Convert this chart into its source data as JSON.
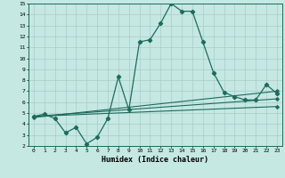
{
  "title": "",
  "xlabel": "Humidex (Indice chaleur)",
  "xlim": [
    -0.5,
    23.5
  ],
  "ylim": [
    2,
    15
  ],
  "xticks": [
    0,
    1,
    2,
    3,
    4,
    5,
    6,
    7,
    8,
    9,
    10,
    11,
    12,
    13,
    14,
    15,
    16,
    17,
    18,
    19,
    20,
    21,
    22,
    23
  ],
  "yticks": [
    2,
    3,
    4,
    5,
    6,
    7,
    8,
    9,
    10,
    11,
    12,
    13,
    14,
    15
  ],
  "bg_color": "#c5e8e3",
  "line_color": "#1e6b5a",
  "grid_color": "#a8ccc8",
  "line1_x": [
    0,
    1,
    2,
    3,
    4,
    5,
    6,
    7,
    8,
    9,
    10,
    11,
    12,
    13,
    14,
    15,
    16,
    17,
    18,
    19,
    20,
    21,
    22,
    23
  ],
  "line1_y": [
    4.7,
    4.9,
    4.5,
    3.2,
    3.7,
    2.2,
    2.8,
    4.5,
    8.3,
    5.3,
    11.5,
    11.7,
    13.2,
    15.0,
    14.3,
    14.3,
    11.5,
    8.7,
    6.9,
    6.5,
    6.2,
    6.2,
    7.6,
    6.8
  ],
  "line2_x": [
    0,
    23
  ],
  "line2_y": [
    4.6,
    7.0
  ],
  "line3_x": [
    0,
    23
  ],
  "line3_y": [
    4.7,
    6.3
  ],
  "line4_x": [
    0,
    23
  ],
  "line4_y": [
    4.7,
    5.6
  ]
}
